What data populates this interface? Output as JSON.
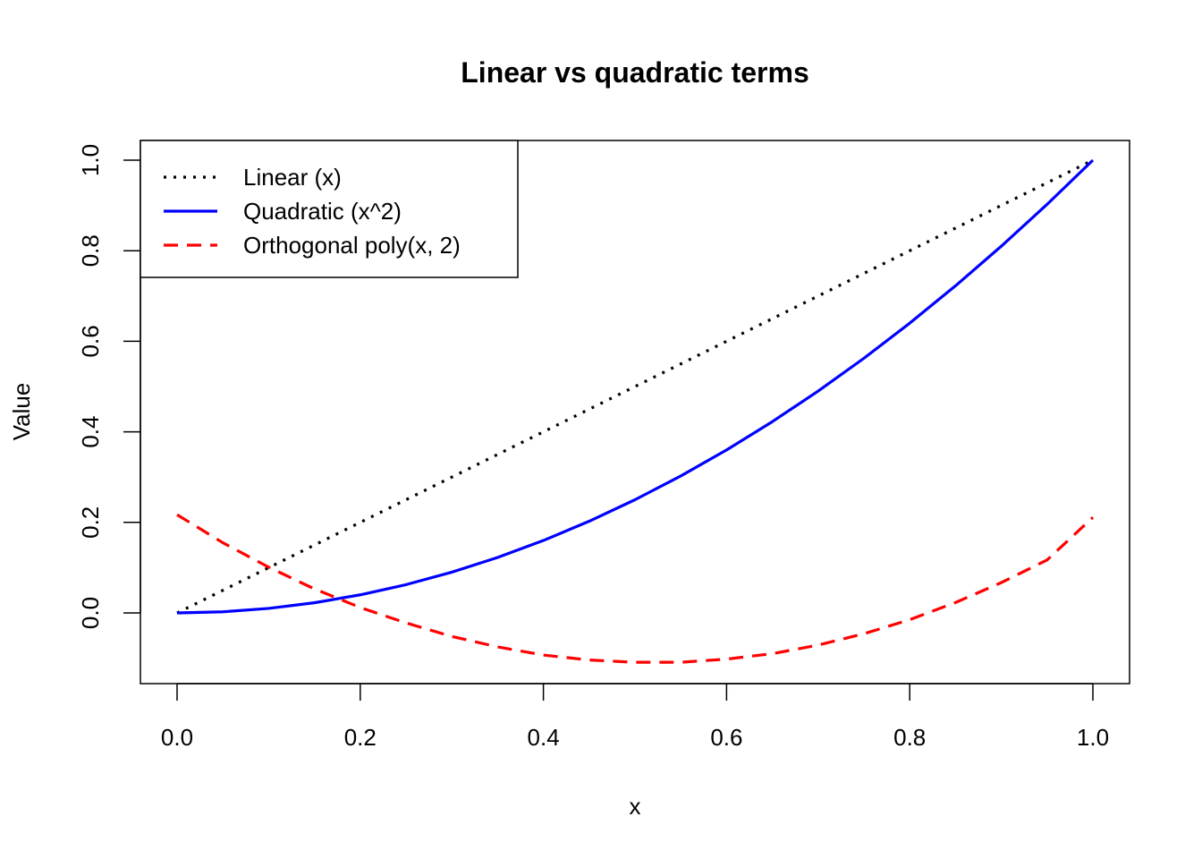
{
  "chart_data": {
    "type": "line",
    "title": "Linear vs quadratic terms",
    "xlabel": "x",
    "ylabel": "Value",
    "xlim": [
      0,
      1
    ],
    "ylim": [
      -0.11,
      1.0
    ],
    "xticks": [
      "0.0",
      "0.2",
      "0.4",
      "0.6",
      "0.8",
      "1.0"
    ],
    "yticks": [
      "0.0",
      "0.2",
      "0.4",
      "0.6",
      "0.8",
      "1.0"
    ],
    "grid": false,
    "legend_position": "top-left",
    "x": [
      0,
      0.05,
      0.1,
      0.15,
      0.2,
      0.25,
      0.3,
      0.35,
      0.4,
      0.45,
      0.5,
      0.55,
      0.6,
      0.65,
      0.7,
      0.75,
      0.8,
      0.85,
      0.9,
      0.95,
      1.0
    ],
    "series": [
      {
        "name": "Linear (x)",
        "color": "#000000",
        "style": "dotted",
        "values": [
          0,
          0.05,
          0.1,
          0.15,
          0.2,
          0.25,
          0.3,
          0.35,
          0.4,
          0.45,
          0.5,
          0.55,
          0.6,
          0.65,
          0.7,
          0.75,
          0.8,
          0.85,
          0.9,
          0.95,
          1.0
        ]
      },
      {
        "name": "Quadratic (x^2)",
        "color": "#0000ff",
        "style": "solid",
        "values": [
          0,
          0.0025,
          0.01,
          0.0225,
          0.04,
          0.0625,
          0.09,
          0.1225,
          0.16,
          0.2025,
          0.25,
          0.3025,
          0.36,
          0.4225,
          0.49,
          0.5625,
          0.64,
          0.7225,
          0.81,
          0.9025,
          1.0
        ]
      },
      {
        "name": "Orthogonal poly(x, 2)",
        "color": "#ff0000",
        "style": "dashed",
        "values": [
          0.217,
          0.155,
          0.101,
          0.053,
          0.012,
          -0.022,
          -0.052,
          -0.075,
          -0.093,
          -0.104,
          -0.109,
          -0.109,
          -0.102,
          -0.09,
          -0.071,
          -0.046,
          -0.015,
          0.023,
          0.067,
          0.117,
          0.211
        ]
      }
    ]
  }
}
